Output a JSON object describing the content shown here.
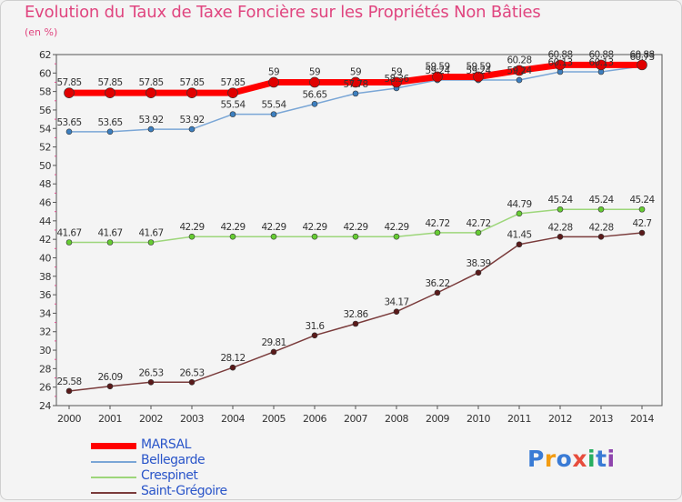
{
  "title": "Evolution du Taux de Taxe Foncière sur les Propriétés Non Bâties",
  "unit": "(en %)",
  "logo": {
    "text": "Proxiti"
  },
  "chart_data": {
    "type": "line",
    "title": "Evolution du Taux de Taxe Foncière sur les Propriétés Non Bâties",
    "ylabel": "(en %)",
    "xlabel": "",
    "ylim": [
      24,
      62
    ],
    "ytick_step": 2,
    "grid": false,
    "legend_position": "bottom-left",
    "categories": [
      "2000",
      "2001",
      "2002",
      "2003",
      "2004",
      "2005",
      "2006",
      "2007",
      "2008",
      "2009",
      "2010",
      "2011",
      "2012",
      "2013",
      "2014"
    ],
    "series": [
      {
        "name": "MARSAL",
        "color": "#ff0000",
        "width": 7,
        "marker_color": "#e00000",
        "values": [
          57.85,
          57.85,
          57.85,
          57.85,
          57.85,
          59,
          59,
          59,
          59,
          59.59,
          59.59,
          60.28,
          60.88,
          60.88,
          60.88
        ],
        "labels": [
          "57.85",
          "57.85",
          "57.85",
          "57.85",
          "57.85",
          "59",
          "59",
          "59",
          "59",
          "59.59",
          "59.59",
          "60.28",
          "60.88",
          "60.88",
          "60.88"
        ]
      },
      {
        "name": "Bellegarde",
        "color": "#7aa6d6",
        "width": 1.5,
        "marker_color": "#3d7fbf",
        "values": [
          53.65,
          53.65,
          53.92,
          53.92,
          55.54,
          55.54,
          56.65,
          57.78,
          58.36,
          59.24,
          59.24,
          59.24,
          60.13,
          60.13,
          60.73
        ],
        "labels": [
          "53.65",
          "53.65",
          "53.92",
          "53.92",
          "55.54",
          "55.54",
          "56.65",
          "57.78",
          "58.36",
          "59.24",
          "59.24",
          "59.24",
          "60.13",
          "60.13",
          "60.73"
        ]
      },
      {
        "name": "Crespinet",
        "color": "#9dd67a",
        "width": 1.5,
        "marker_color": "#66cc33",
        "values": [
          41.67,
          41.67,
          41.67,
          42.29,
          42.29,
          42.29,
          42.29,
          42.29,
          42.29,
          42.72,
          42.72,
          44.79,
          45.24,
          45.24,
          45.24
        ],
        "labels": [
          "41.67",
          "41.67",
          "41.67",
          "42.29",
          "42.29",
          "42.29",
          "42.29",
          "42.29",
          "42.29",
          "42.72",
          "42.72",
          "44.79",
          "45.24",
          "45.24",
          "45.24"
        ]
      },
      {
        "name": "Saint-Grégoire",
        "color": "#7a3b3b",
        "width": 1.5,
        "marker_color": "#5a1a1a",
        "values": [
          25.58,
          26.09,
          26.53,
          26.53,
          28.12,
          29.81,
          31.6,
          32.86,
          34.17,
          36.22,
          38.39,
          41.45,
          42.28,
          42.28,
          42.7
        ],
        "labels": [
          "25.58",
          "26.09",
          "26.53",
          "26.53",
          "28.12",
          "29.81",
          "31.6",
          "32.86",
          "34.17",
          "36.22",
          "38.39",
          "41.45",
          "42.28",
          "42.28",
          "42.7"
        ]
      }
    ]
  }
}
